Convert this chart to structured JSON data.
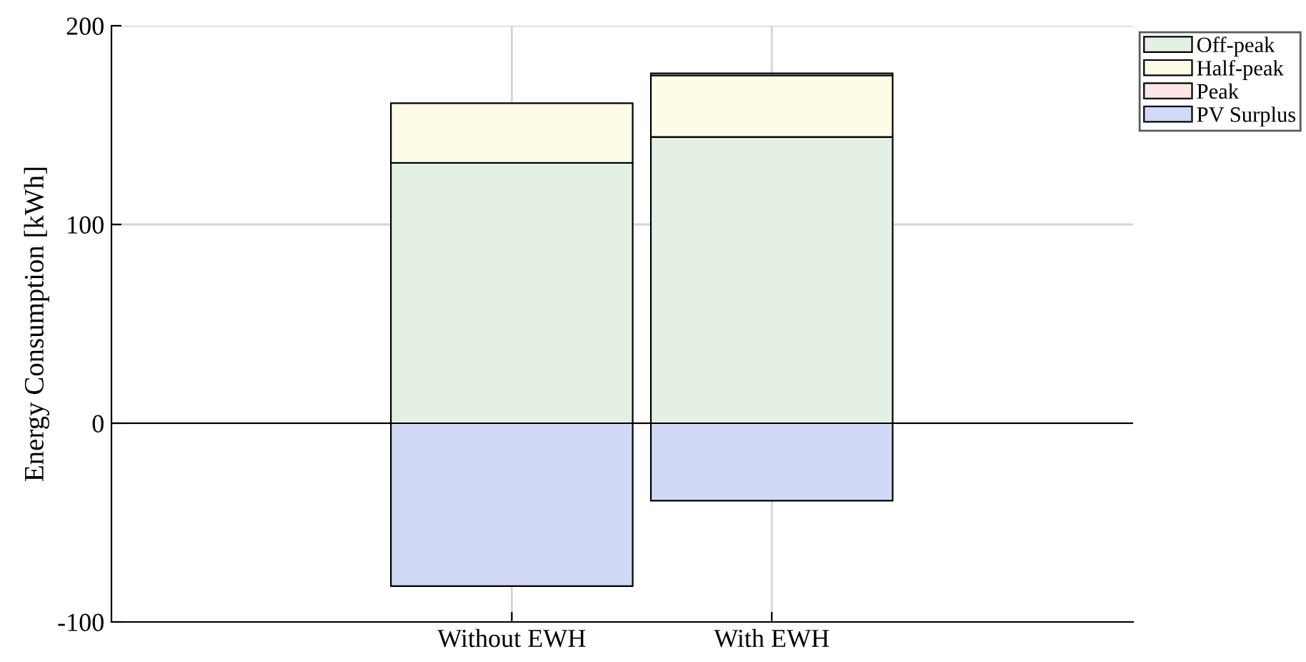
{
  "chart_data": {
    "type": "bar",
    "stacked": true,
    "ylabel": "Energy Consumption [kWh]",
    "categories": [
      "Without EWH",
      "With EWH"
    ],
    "series": [
      {
        "name": "Off-peak",
        "color": "#e5f0e4",
        "values": [
          131,
          144
        ]
      },
      {
        "name": "Half-peak",
        "color": "#fefbe7",
        "values": [
          30,
          31
        ]
      },
      {
        "name": "Peak",
        "color": "#fde6e6",
        "values": [
          0,
          1
        ]
      },
      {
        "name": "PV Surplus",
        "color": "#d0d9f5",
        "values": [
          -82,
          -39
        ]
      }
    ],
    "ylim": [
      -100,
      200
    ],
    "yticks": [
      -100,
      0,
      100,
      200
    ],
    "grid": true,
    "legend": "top right",
    "ref_lines": [
      {
        "axis": "y",
        "value": 0,
        "color": "#000000"
      }
    ]
  }
}
